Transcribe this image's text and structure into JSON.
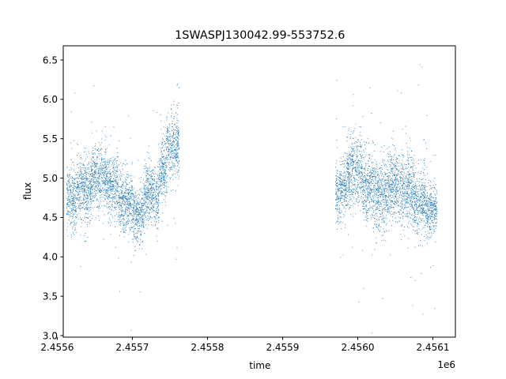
{
  "chart_data": {
    "type": "scatter",
    "title": "1SWASPJ130042.99-553752.6",
    "xlabel": "time",
    "ylabel": "flux",
    "x_offset_label": "1e6",
    "xlim": [
      2455608,
      2456130
    ],
    "ylim": [
      2.98,
      6.68
    ],
    "xticks": [
      2455600,
      2455700,
      2455800,
      2455900,
      2456000,
      2456100
    ],
    "xtick_labels": [
      "2.4556",
      "2.4557",
      "2.4558",
      "2.4559",
      "2.4560",
      "2.4561"
    ],
    "yticks": [
      3.0,
      3.5,
      4.0,
      4.5,
      5.0,
      5.5,
      6.0,
      6.5
    ],
    "ytick_labels": [
      "3.0",
      "3.5",
      "4.0",
      "4.5",
      "5.0",
      "5.5",
      "6.0",
      "6.5"
    ],
    "grid": false,
    "marker_color": "#1f77b4",
    "segments": [
      {
        "x_start": 2455612,
        "x_end": 2455625,
        "mean": 4.75,
        "spread": 0.35
      },
      {
        "x_start": 2455625,
        "x_end": 2455645,
        "mean": 4.85,
        "spread": 0.35
      },
      {
        "x_start": 2455645,
        "x_end": 2455665,
        "mean": 5.0,
        "spread": 0.4
      },
      {
        "x_start": 2455665,
        "x_end": 2455680,
        "mean": 4.9,
        "spread": 0.35
      },
      {
        "x_start": 2455680,
        "x_end": 2455700,
        "mean": 4.7,
        "spread": 0.35
      },
      {
        "x_start": 2455700,
        "x_end": 2455715,
        "mean": 4.55,
        "spread": 0.3
      },
      {
        "x_start": 2455715,
        "x_end": 2455735,
        "mean": 4.8,
        "spread": 0.35
      },
      {
        "x_start": 2455735,
        "x_end": 2455745,
        "mean": 5.1,
        "spread": 0.35
      },
      {
        "x_start": 2455745,
        "x_end": 2455762,
        "mean": 5.4,
        "spread": 0.35
      },
      {
        "x_start": 2455970,
        "x_end": 2455985,
        "mean": 4.85,
        "spread": 0.35
      },
      {
        "x_start": 2455985,
        "x_end": 2456005,
        "mean": 5.1,
        "spread": 0.4
      },
      {
        "x_start": 2456005,
        "x_end": 2456020,
        "mean": 4.9,
        "spread": 0.4
      },
      {
        "x_start": 2456020,
        "x_end": 2456040,
        "mean": 4.8,
        "spread": 0.4
      },
      {
        "x_start": 2456040,
        "x_end": 2456060,
        "mean": 4.9,
        "spread": 0.4
      },
      {
        "x_start": 2456060,
        "x_end": 2456075,
        "mean": 4.85,
        "spread": 0.4
      },
      {
        "x_start": 2456075,
        "x_end": 2456090,
        "mean": 4.7,
        "spread": 0.35
      },
      {
        "x_start": 2456090,
        "x_end": 2456105,
        "mean": 4.6,
        "spread": 0.3
      }
    ]
  }
}
